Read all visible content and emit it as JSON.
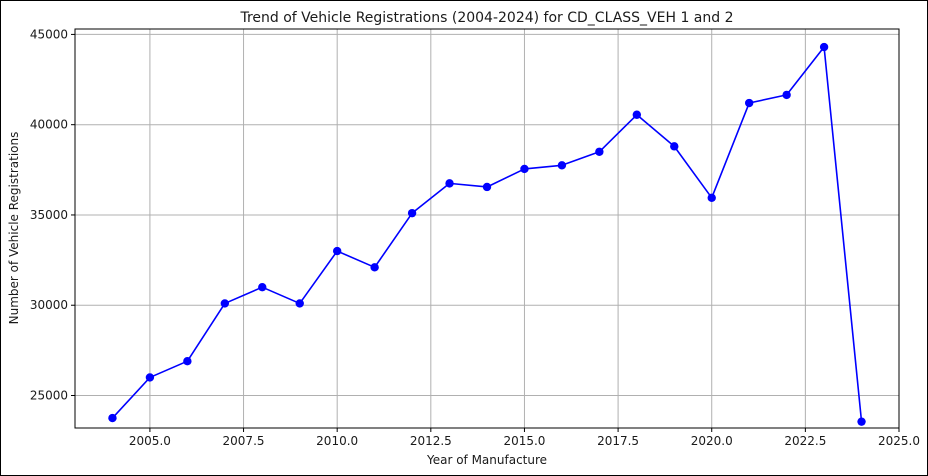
{
  "chart_data": {
    "type": "line",
    "title": "Trend of Vehicle Registrations (2004-2024) for CD_CLASS_VEH 1 and 2",
    "xlabel": "Year of Manufacture",
    "ylabel": "Number of Vehicle Registrations",
    "x": [
      2004,
      2005,
      2006,
      2007,
      2008,
      2009,
      2010,
      2011,
      2012,
      2013,
      2014,
      2015,
      2016,
      2017,
      2018,
      2019,
      2020,
      2021,
      2022,
      2023,
      2024
    ],
    "series": [
      {
        "values": [
          23750,
          26000,
          26900,
          30100,
          31000,
          30100,
          33000,
          32100,
          35100,
          36750,
          36550,
          37550,
          37750,
          38500,
          40550,
          38800,
          35950,
          41200,
          41650,
          44300,
          23550
        ],
        "color": "#0000ff",
        "marker": "circle"
      }
    ],
    "xlim": [
      2003.0,
      2025.0
    ],
    "ylim": [
      23200,
      45300
    ],
    "xticks": [
      "2005.0",
      "2007.5",
      "2010.0",
      "2012.5",
      "2015.0",
      "2017.5",
      "2020.0",
      "2022.5",
      "2025.0"
    ],
    "yticks": [
      "25000",
      "30000",
      "35000",
      "40000",
      "45000"
    ],
    "grid": true,
    "legend": "none"
  }
}
